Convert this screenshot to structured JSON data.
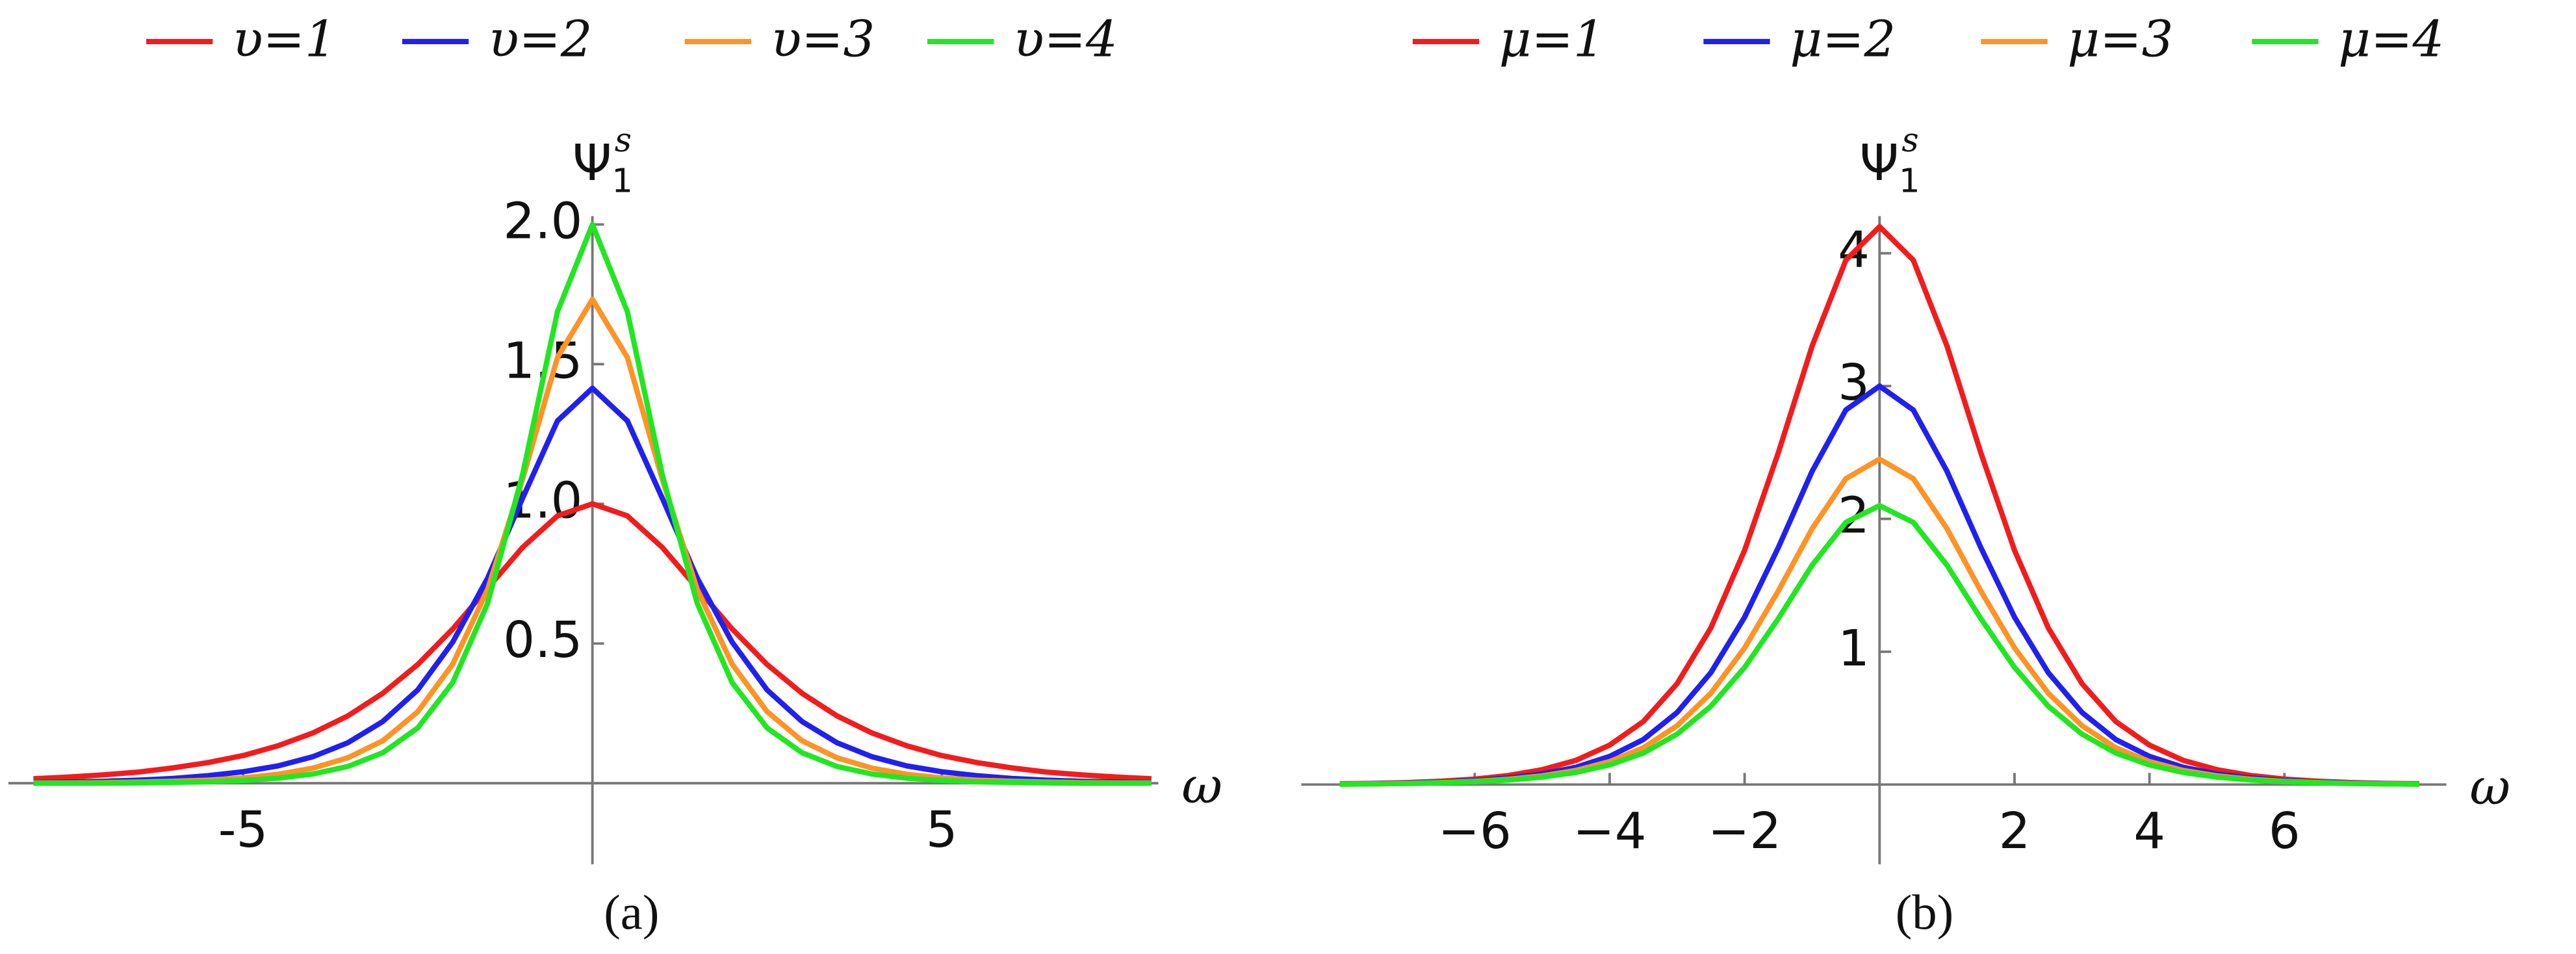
{
  "chart_data": [
    {
      "type": "line",
      "caption": "(a)",
      "xlabel": "ω",
      "ylabel": {
        "base": "Ψ",
        "sub": "1",
        "sup": "s"
      },
      "x": [
        -8,
        -7.5,
        -7,
        -6.5,
        -6,
        -5.5,
        -5,
        -4.5,
        -4,
        -3.5,
        -3,
        -2.5,
        -2,
        -1.5,
        -1,
        -0.5,
        0,
        0.5,
        1,
        1.5,
        2,
        2.5,
        3,
        3.5,
        4,
        4.5,
        5,
        5.5,
        6,
        6.5,
        7,
        7.5,
        8
      ],
      "xlim": [
        -8.36,
        8.1
      ],
      "ylim": [
        -0.29,
        2.03
      ],
      "xticks": [
        -5,
        5
      ],
      "yticks": [
        0.5,
        {
          "value": 1,
          "label": "1.0"
        },
        1.5,
        {
          "value": 2,
          "label": "2.0"
        }
      ],
      "series": [
        {
          "name": "υ=1",
          "color": "#f21c1c",
          "values": [
            0.016,
            0.022,
            0.03,
            0.04,
            0.055,
            0.074,
            0.099,
            0.134,
            0.18,
            0.241,
            0.322,
            0.425,
            0.552,
            0.698,
            0.844,
            0.957,
            1.0,
            0.957,
            0.844,
            0.698,
            0.552,
            0.425,
            0.322,
            0.241,
            0.18,
            0.134,
            0.099,
            0.074,
            0.055,
            0.04,
            0.03,
            0.022,
            0.016
          ]
        },
        {
          "name": "υ=2",
          "color": "#2020f0",
          "values": [
            0.003,
            0.005,
            0.007,
            0.011,
            0.017,
            0.027,
            0.041,
            0.062,
            0.095,
            0.145,
            0.221,
            0.334,
            0.505,
            0.734,
            1.02,
            1.297,
            1.414,
            1.297,
            1.02,
            0.734,
            0.505,
            0.334,
            0.221,
            0.145,
            0.095,
            0.062,
            0.041,
            0.027,
            0.017,
            0.011,
            0.007,
            0.005,
            0.003
          ]
        },
        {
          "name": "υ=3",
          "color": "#ff9326",
          "values": [
            0.001,
            0.001,
            0.002,
            0.004,
            0.007,
            0.011,
            0.019,
            0.032,
            0.054,
            0.091,
            0.152,
            0.256,
            0.426,
            0.693,
            1.088,
            1.524,
            1.732,
            1.524,
            1.088,
            0.693,
            0.426,
            0.256,
            0.152,
            0.091,
            0.054,
            0.032,
            0.019,
            0.011,
            0.007,
            0.004,
            0.002,
            0.001,
            0.001
          ]
        },
        {
          "name": "υ=4",
          "color": "#22e622",
          "values": [
            0,
            0,
            0,
            0.001,
            0.003,
            0.005,
            0.01,
            0.018,
            0.033,
            0.06,
            0.109,
            0.198,
            0.36,
            0.644,
            1.104,
            1.688,
            2.0,
            1.688,
            1.104,
            0.644,
            0.36,
            0.198,
            0.109,
            0.06,
            0.033,
            0.018,
            0.01,
            0.005,
            0.003,
            0.001,
            0,
            0,
            0
          ]
        }
      ]
    },
    {
      "type": "line",
      "caption": "(b)",
      "xlabel": "ω",
      "ylabel": {
        "base": "Ψ",
        "sub": "1",
        "sup": "s"
      },
      "x": [
        -8,
        -7.5,
        -7,
        -6.5,
        -6,
        -5.5,
        -5,
        -4.5,
        -4,
        -3.5,
        -3,
        -2.5,
        -2,
        -1.5,
        -1,
        -0.5,
        0,
        0.5,
        1,
        1.5,
        2,
        2.5,
        3,
        3.5,
        4,
        4.5,
        5,
        5.5,
        6,
        6.5,
        7,
        7.5,
        8
      ],
      "xlim": [
        -8.57,
        8.4
      ],
      "ylim": [
        -0.6,
        4.28
      ],
      "xticks": [
        {
          "value": -6,
          "label": "−6"
        },
        {
          "value": -4,
          "label": "−4"
        },
        {
          "value": -2,
          "label": "−2"
        },
        2,
        4,
        6
      ],
      "yticks": [
        1,
        2,
        3,
        4
      ],
      "series": [
        {
          "name": "μ=1",
          "color": "#f21c1c",
          "values": [
            0.006,
            0.009,
            0.015,
            0.025,
            0.041,
            0.068,
            0.112,
            0.182,
            0.297,
            0.475,
            0.76,
            1.18,
            1.764,
            2.499,
            3.301,
            3.948,
            4.2,
            3.948,
            3.301,
            2.499,
            1.764,
            1.18,
            0.76,
            0.475,
            0.297,
            0.182,
            0.112,
            0.068,
            0.041,
            0.025,
            0.015,
            0.009,
            0.006
          ]
        },
        {
          "name": "μ=2",
          "color": "#2020f0",
          "values": [
            0.004,
            0.007,
            0.011,
            0.018,
            0.03,
            0.049,
            0.08,
            0.13,
            0.212,
            0.339,
            0.543,
            0.843,
            1.26,
            1.785,
            2.358,
            2.82,
            3.0,
            2.82,
            2.358,
            1.785,
            1.26,
            0.843,
            0.543,
            0.339,
            0.212,
            0.13,
            0.08,
            0.049,
            0.03,
            0.018,
            0.011,
            0.007,
            0.004
          ]
        },
        {
          "name": "μ=3",
          "color": "#ff9326",
          "values": [
            0.003,
            0.005,
            0.009,
            0.015,
            0.024,
            0.04,
            0.065,
            0.106,
            0.173,
            0.277,
            0.443,
            0.688,
            1.029,
            1.458,
            1.926,
            2.303,
            2.45,
            2.303,
            1.926,
            1.458,
            1.029,
            0.688,
            0.443,
            0.277,
            0.173,
            0.106,
            0.065,
            0.04,
            0.024,
            0.015,
            0.009,
            0.005,
            0.003
          ]
        },
        {
          "name": "μ=4",
          "color": "#22e622",
          "values": [
            0.003,
            0.005,
            0.008,
            0.013,
            0.021,
            0.034,
            0.056,
            0.091,
            0.148,
            0.237,
            0.38,
            0.59,
            0.882,
            1.25,
            1.651,
            1.974,
            2.1,
            1.974,
            1.651,
            1.25,
            0.882,
            0.59,
            0.38,
            0.237,
            0.148,
            0.091,
            0.056,
            0.034,
            0.021,
            0.013,
            0.008,
            0.005,
            0.003
          ]
        }
      ]
    }
  ]
}
